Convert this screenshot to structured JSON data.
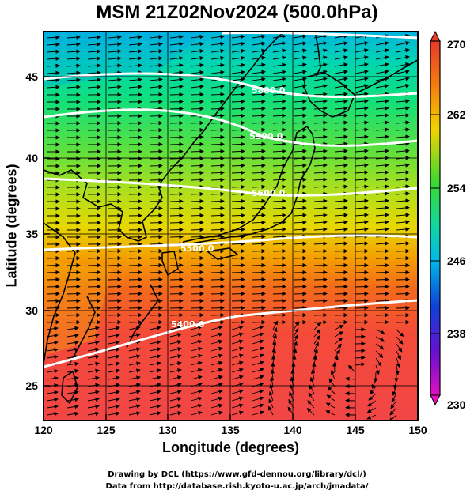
{
  "title": "MSM 21Z02Nov2024 (500.0hPa)",
  "xlabel": "Longitude (degrees)",
  "ylabel": "Latitude  (degrees)",
  "credits": [
    "Drawing by DCL (https://www.gfd-dennou.org/library/dcl/)",
    "Data from http://database.rish.kyoto-u.ac.jp/arch/jmadata/"
  ],
  "map": {
    "lon_range": [
      120,
      150
    ],
    "lat_range": [
      22.4,
      47.6
    ],
    "x_ticks": [
      "120",
      "125",
      "130",
      "135",
      "140",
      "145",
      "150"
    ],
    "y_ticks": [
      "25",
      "30",
      "35",
      "40",
      "45"
    ],
    "fill_variable_range": [
      230,
      270
    ],
    "colorbar_ticks": [
      "270",
      "262",
      "254",
      "246",
      "238",
      "230"
    ],
    "contour_labels": [
      "5400.0",
      "5500.0",
      "5600.0",
      "5800.0",
      "5900.0"
    ],
    "contour_color": "#ffffff",
    "vector_color": "#000000"
  }
}
